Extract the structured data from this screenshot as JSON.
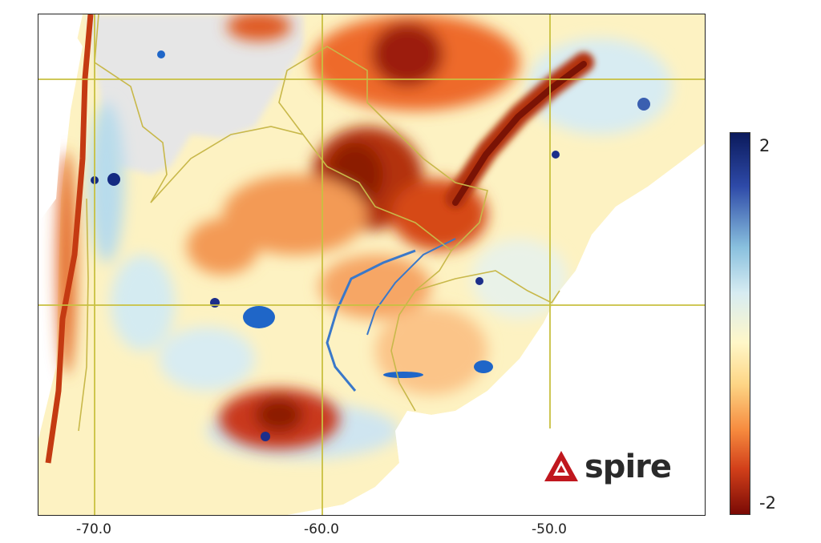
{
  "map": {
    "x_ticks": [
      "-70.0",
      "-60.0",
      "-50.0"
    ],
    "colors": {
      "land_neutral": "#fdf2c2",
      "drier": "#d64818",
      "very_dry": "#8c1a06",
      "wetter": "#b9dced",
      "very_wet": "#1c2e8a",
      "water": "#1f66c8",
      "ocean": "#ffffff",
      "no_data": "#e4e4e4",
      "borders": "#c8b84a",
      "gridlines": "#c8c040"
    }
  },
  "colorbar": {
    "max_label": "2",
    "min_label": "-2"
  },
  "logo": {
    "text": "spire",
    "color": "#c0171e"
  }
}
